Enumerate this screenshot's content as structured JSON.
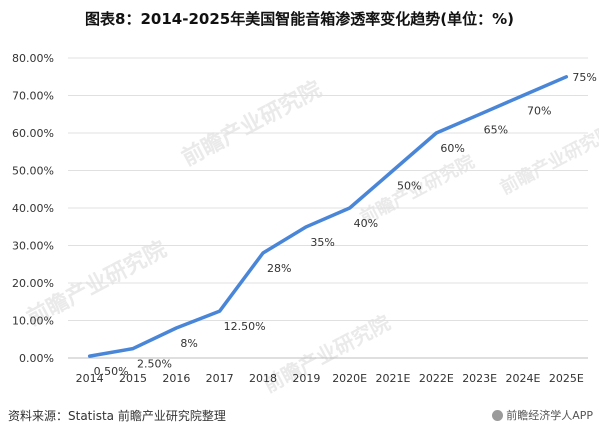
{
  "title": "图表8：2014-2025年美国智能音箱渗透率变化趋势(单位：%)",
  "source": "资料来源：Statista 前瞻产业研究院整理",
  "brand": "前瞻经济学人APP",
  "watermark": "前瞻产业研究院",
  "colors": {
    "line": "#4a86d8",
    "grid": "#e0e0e0",
    "axis": "#bfbfbf"
  },
  "chart_data": {
    "type": "line",
    "title": "图表8：2014-2025年美国智能音箱渗透率变化趋势(单位：%)",
    "xlabel": "",
    "ylabel": "",
    "categories": [
      "2014",
      "2015",
      "2016",
      "2017",
      "2018",
      "2019",
      "2020E",
      "2021E",
      "2022E",
      "2023E",
      "2024E",
      "2025E"
    ],
    "values": [
      0.5,
      2.5,
      8,
      12.5,
      28,
      35,
      40,
      50,
      60,
      65,
      70,
      75
    ],
    "data_labels": [
      "0.50%",
      "2.50%",
      "8%",
      "12.50%",
      "28%",
      "35%",
      "40%",
      "50%",
      "60%",
      "65%",
      "70%",
      "75%"
    ],
    "y_ticks": [
      "0.00%",
      "10.00%",
      "20.00%",
      "30.00%",
      "40.00%",
      "50.00%",
      "60.00%",
      "70.00%",
      "80.00%"
    ],
    "ylim": [
      0,
      80
    ],
    "grid": true,
    "legend": "none"
  }
}
